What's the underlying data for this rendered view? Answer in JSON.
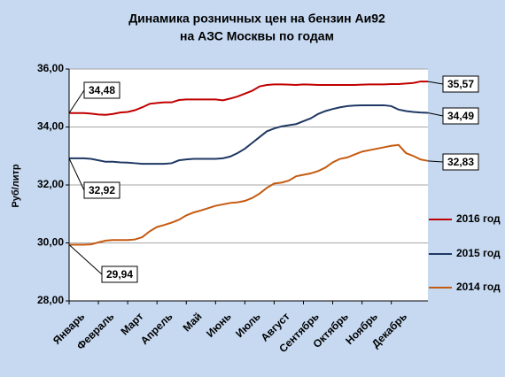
{
  "chart_data": {
    "type": "line",
    "title": "Динамика розничных цен на бензин Аи92",
    "subtitle": "на АЗС Москвы по годам",
    "ylabel": "Руб/литр",
    "categories": [
      "Январь",
      null,
      null,
      null,
      "Февраль",
      null,
      null,
      null,
      "Март",
      null,
      null,
      null,
      "Апрель",
      null,
      null,
      null,
      "Май",
      null,
      null,
      null,
      "Июнь",
      null,
      null,
      null,
      "Июль",
      null,
      null,
      null,
      "Август",
      null,
      null,
      null,
      "Сентябрь",
      null,
      null,
      null,
      "Октябрь",
      null,
      null,
      null,
      "Ноябрь",
      null,
      null,
      null,
      "Декабрь",
      null,
      null,
      null,
      null,
      null
    ],
    "series": [
      {
        "name": "2016 год",
        "color": "#c00000",
        "values": [
          34.48,
          34.48,
          34.48,
          34.46,
          34.43,
          34.42,
          34.45,
          34.5,
          34.52,
          34.58,
          34.68,
          34.8,
          34.83,
          34.85,
          34.85,
          34.93,
          34.95,
          34.95,
          34.95,
          34.95,
          34.95,
          34.92,
          34.98,
          35.05,
          35.15,
          35.25,
          35.4,
          35.45,
          35.47,
          35.47,
          35.46,
          35.45,
          35.47,
          35.46,
          35.45,
          35.45,
          35.45,
          35.45,
          35.45,
          35.45,
          35.46,
          35.47,
          35.47,
          35.47,
          35.48,
          35.48,
          35.5,
          35.52,
          35.57,
          35.57
        ],
        "value_labels": [
          "34,48",
          null,
          null,
          null,
          null,
          null,
          null,
          null,
          null,
          null,
          null,
          null,
          null,
          null,
          null,
          null,
          null,
          null,
          null,
          null,
          null,
          null,
          null,
          null,
          null,
          null,
          null,
          null,
          null,
          null,
          null,
          null,
          null,
          null,
          null,
          null,
          null,
          null,
          null,
          null,
          null,
          null,
          null,
          null,
          null,
          null,
          null,
          null,
          null,
          "35,57"
        ]
      },
      {
        "name": "2015 год",
        "color": "#1f3864",
        "values": [
          32.92,
          32.92,
          32.92,
          32.9,
          32.85,
          32.8,
          32.8,
          32.78,
          32.77,
          32.75,
          32.73,
          32.73,
          32.73,
          32.73,
          32.75,
          32.85,
          32.88,
          32.9,
          32.9,
          32.9,
          32.9,
          32.92,
          32.98,
          33.1,
          33.25,
          33.45,
          33.65,
          33.85,
          33.95,
          34.02,
          34.06,
          34.1,
          34.2,
          34.3,
          34.45,
          34.55,
          34.62,
          34.68,
          34.72,
          34.74,
          34.75,
          34.75,
          34.75,
          34.75,
          34.72,
          34.6,
          34.55,
          34.52,
          34.5,
          34.49
        ],
        "value_labels": [
          "32,92",
          null,
          null,
          null,
          null,
          null,
          null,
          null,
          null,
          null,
          null,
          null,
          null,
          null,
          null,
          null,
          null,
          null,
          null,
          null,
          null,
          null,
          null,
          null,
          null,
          null,
          null,
          null,
          null,
          null,
          null,
          null,
          null,
          null,
          null,
          null,
          null,
          null,
          null,
          null,
          null,
          null,
          null,
          null,
          null,
          null,
          null,
          null,
          null,
          "34,49"
        ]
      },
      {
        "name": "2014 год",
        "color": "#c55a11",
        "values": [
          29.94,
          29.94,
          29.94,
          29.95,
          30.02,
          30.08,
          30.1,
          30.1,
          30.1,
          30.12,
          30.2,
          30.4,
          30.55,
          30.62,
          30.7,
          30.8,
          30.95,
          31.05,
          31.12,
          31.2,
          31.28,
          31.33,
          31.38,
          31.4,
          31.45,
          31.55,
          31.7,
          31.9,
          32.05,
          32.08,
          32.15,
          32.3,
          32.35,
          32.4,
          32.48,
          32.6,
          32.78,
          32.9,
          32.95,
          33.05,
          33.15,
          33.2,
          33.25,
          33.3,
          33.35,
          33.38,
          33.1,
          33.0,
          32.88,
          32.83
        ],
        "value_labels": [
          "29,94",
          null,
          null,
          null,
          null,
          null,
          null,
          null,
          null,
          null,
          null,
          null,
          null,
          null,
          null,
          null,
          null,
          null,
          null,
          null,
          null,
          null,
          null,
          null,
          null,
          null,
          null,
          null,
          null,
          null,
          null,
          null,
          null,
          null,
          null,
          null,
          null,
          null,
          null,
          null,
          null,
          null,
          null,
          null,
          null,
          null,
          null,
          null,
          null,
          "32,83"
        ]
      }
    ],
    "ylim": [
      28,
      36
    ],
    "yticks": [
      {
        "value": 28,
        "label": "28,00"
      },
      {
        "value": 30,
        "label": "30,00"
      },
      {
        "value": 32,
        "label": "32,00"
      },
      {
        "value": 34,
        "label": "34,00"
      },
      {
        "value": 36,
        "label": "36,00"
      }
    ],
    "grid": true,
    "legend": "right"
  }
}
